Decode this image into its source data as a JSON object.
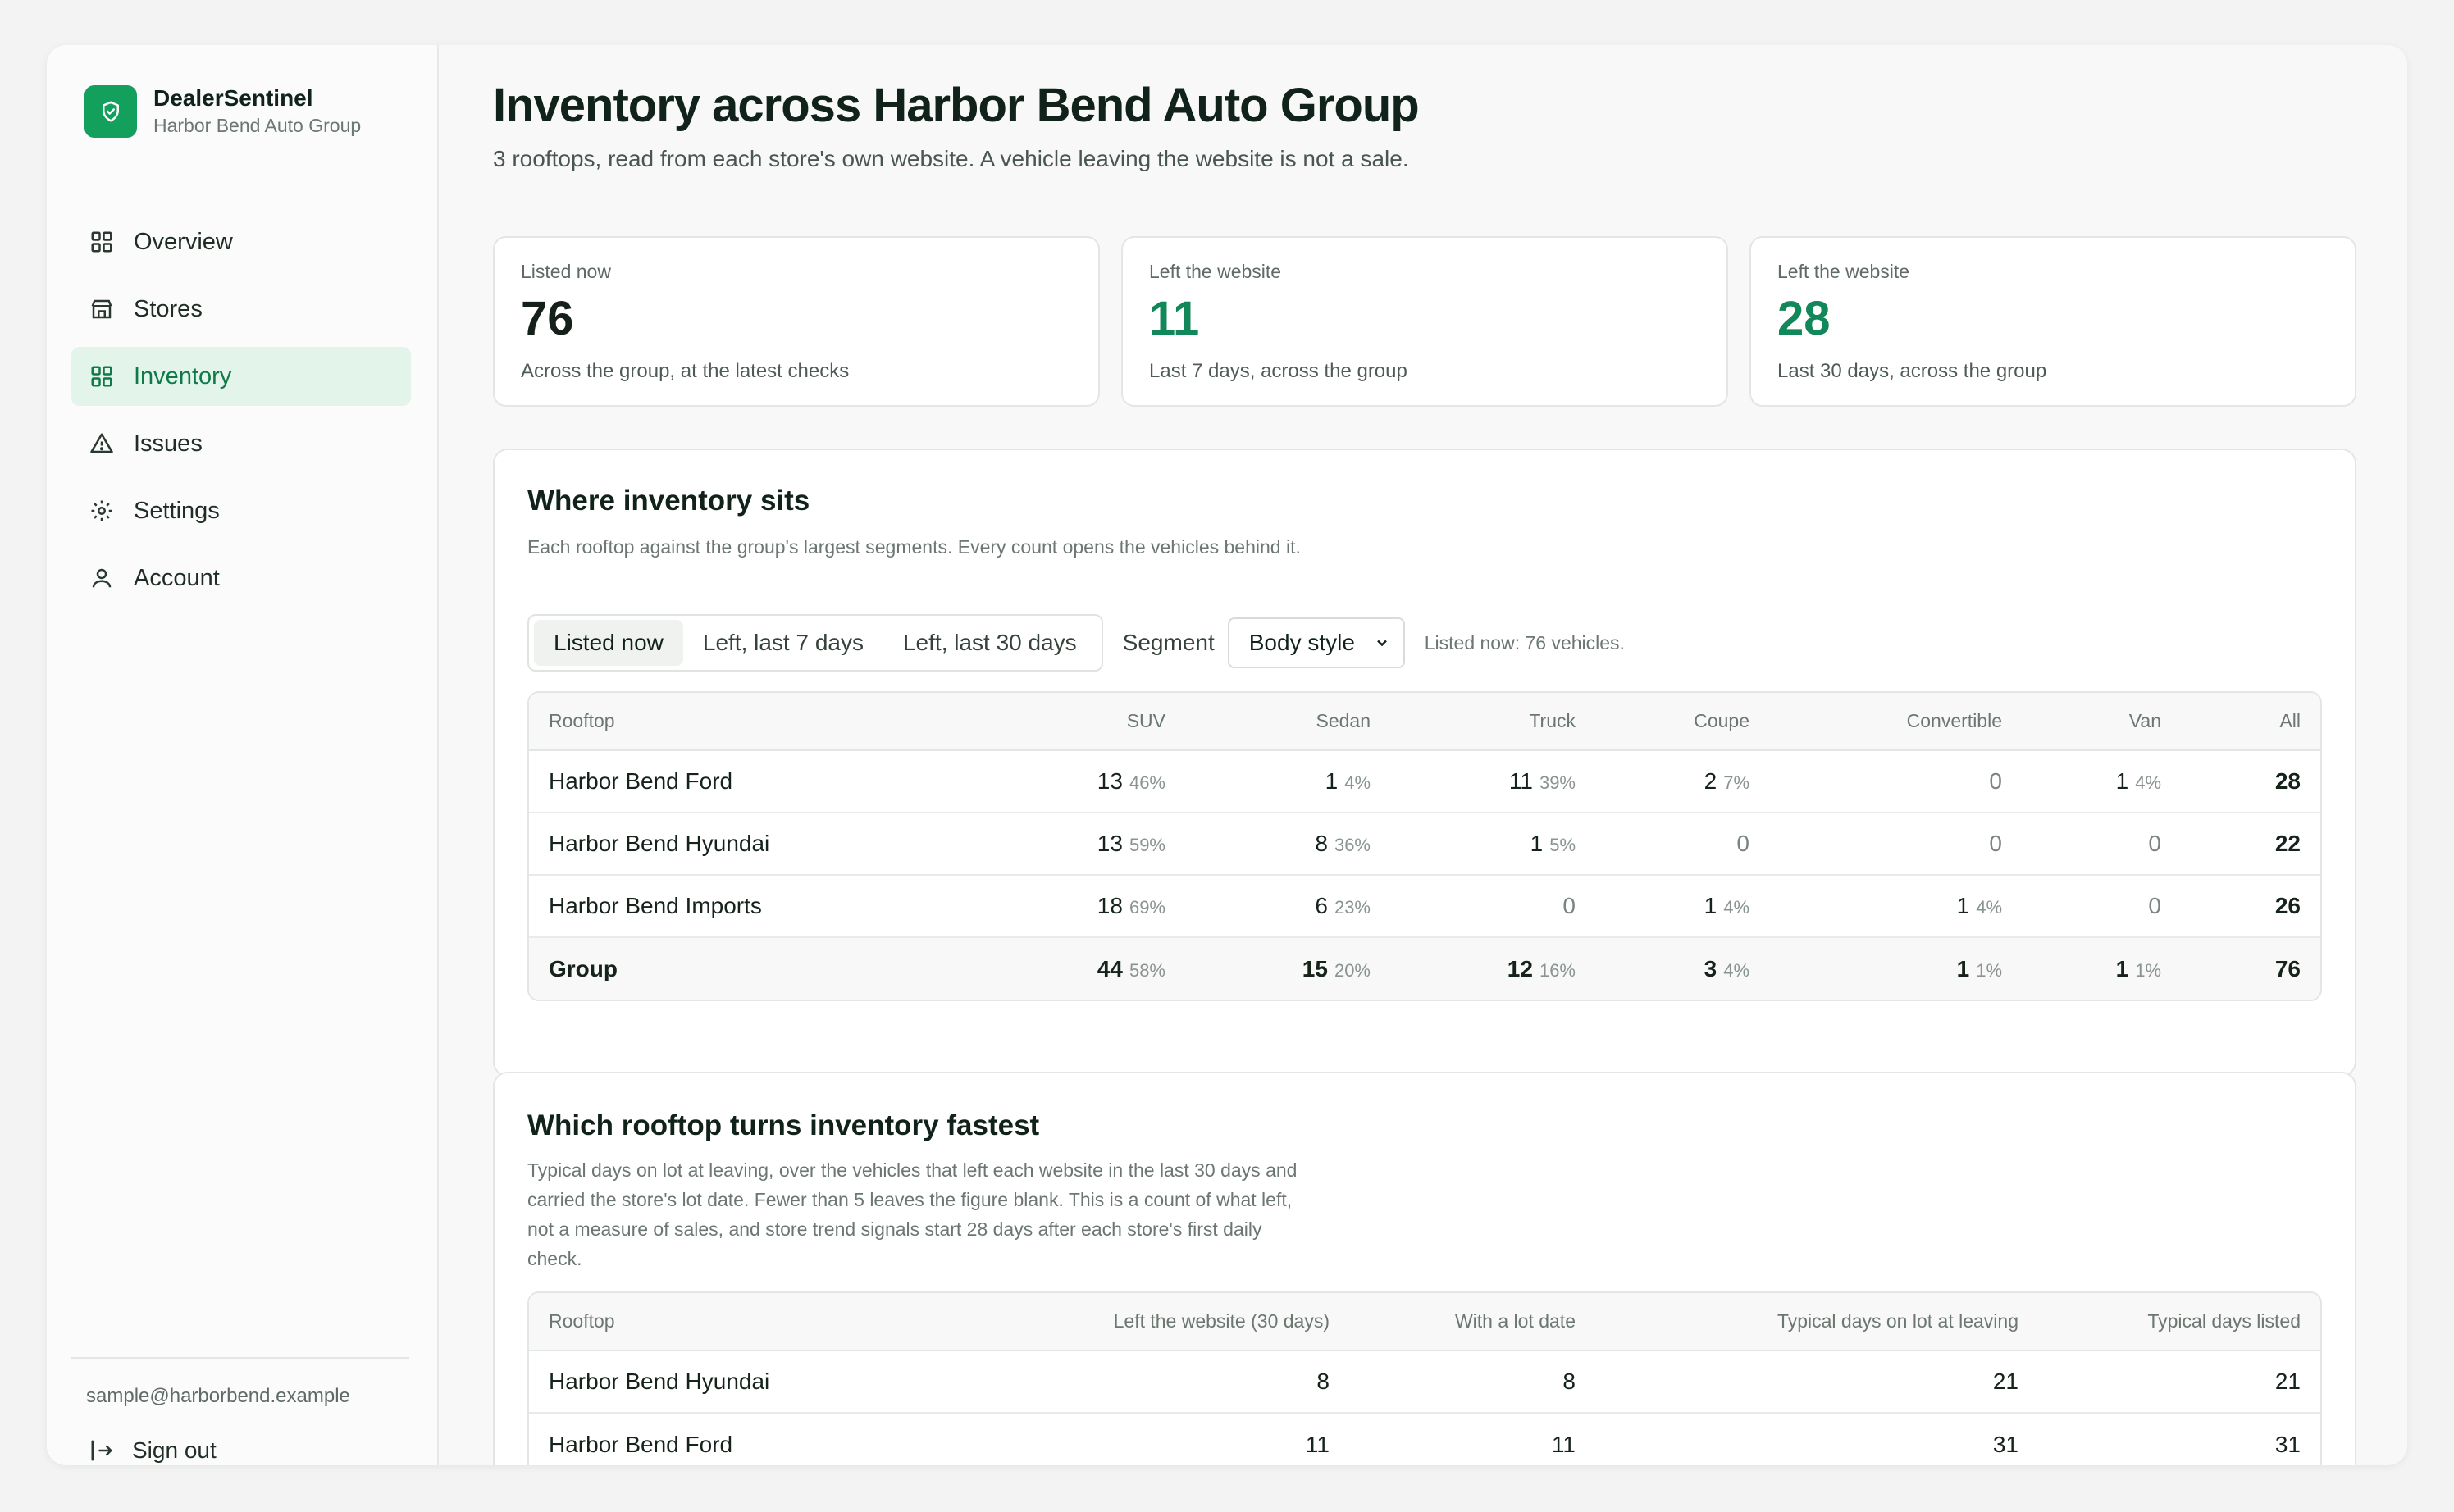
{
  "brand": {
    "name": "DealerSentinel",
    "sub": "Harbor Bend Auto Group"
  },
  "nav": [
    {
      "label": "Overview",
      "icon": "grid-icon",
      "active": false
    },
    {
      "label": "Stores",
      "icon": "store-icon",
      "active": false
    },
    {
      "label": "Inventory",
      "icon": "grid-icon",
      "active": true
    },
    {
      "label": "Issues",
      "icon": "warning-icon",
      "active": false
    },
    {
      "label": "Settings",
      "icon": "gear-icon",
      "active": false
    },
    {
      "label": "Account",
      "icon": "user-icon",
      "active": false
    }
  ],
  "user": {
    "email": "sample@harborbend.example",
    "signout": "Sign out"
  },
  "page": {
    "title": "Inventory across Harbor Bend Auto Group",
    "subtitle": "3 rooftops, read from each store's own website. A vehicle leaving the website is not a sale."
  },
  "stats": [
    {
      "label": "Listed now",
      "value": "76",
      "note": "Across the group, at the latest checks"
    },
    {
      "label": "Left the website",
      "value": "11",
      "note": "Last 7 days, across the group"
    },
    {
      "label": "Left the website",
      "value": "28",
      "note": "Last 30 days, across the group"
    }
  ],
  "segments_card": {
    "title": "Where inventory sits",
    "desc": "Each rooftop against the group's largest segments. Every count opens the vehicles behind it.",
    "tabs": [
      "Listed now",
      "Left, last 7 days",
      "Left, last 30 days"
    ],
    "segment_label": "Segment",
    "segment_value": "Body style",
    "hint": "Listed now: 76 vehicles.",
    "columns": [
      "Rooftop",
      "SUV",
      "Sedan",
      "Truck",
      "Coupe",
      "Convertible",
      "Van",
      "All"
    ],
    "rows": [
      {
        "name": "Harbor Bend Ford",
        "cells": [
          [
            "13",
            "46%"
          ],
          [
            "1",
            "4%"
          ],
          [
            "11",
            "39%"
          ],
          [
            "2",
            "7%"
          ],
          [
            "0",
            ""
          ],
          [
            "1",
            "4%"
          ]
        ],
        "all": "28"
      },
      {
        "name": "Harbor Bend Hyundai",
        "cells": [
          [
            "13",
            "59%"
          ],
          [
            "8",
            "36%"
          ],
          [
            "1",
            "5%"
          ],
          [
            "0",
            ""
          ],
          [
            "0",
            ""
          ],
          [
            "0",
            ""
          ]
        ],
        "all": "22"
      },
      {
        "name": "Harbor Bend Imports",
        "cells": [
          [
            "18",
            "69%"
          ],
          [
            "6",
            "23%"
          ],
          [
            "0",
            ""
          ],
          [
            "1",
            "4%"
          ],
          [
            "1",
            "4%"
          ],
          [
            "0",
            ""
          ]
        ],
        "all": "26"
      },
      {
        "name": "Group",
        "cells": [
          [
            "44",
            "58%"
          ],
          [
            "15",
            "20%"
          ],
          [
            "12",
            "16%"
          ],
          [
            "3",
            "4%"
          ],
          [
            "1",
            "1%"
          ],
          [
            "1",
            "1%"
          ]
        ],
        "all": "76"
      }
    ]
  },
  "turn_card": {
    "title": "Which rooftop turns inventory fastest",
    "desc": "Typical days on lot at leaving, over the vehicles that left each website in the last 30 days and carried the store's lot date. Fewer than 5 leaves the figure blank. This is a count of what left, not a measure of sales, and store trend signals start 28 days after each store's first daily check.",
    "columns": [
      "Rooftop",
      "Left the website (30 days)",
      "With a lot date",
      "Typical days on lot at leaving",
      "Typical days listed"
    ],
    "rows": [
      [
        "Harbor Bend Hyundai",
        "8",
        "8",
        "21",
        "21"
      ],
      [
        "Harbor Bend Ford",
        "11",
        "11",
        "31",
        "31"
      ]
    ]
  },
  "colors": {
    "accent": "#12a05c",
    "active_bg": "#e3f4ea",
    "stat_green": "#12885a"
  }
}
